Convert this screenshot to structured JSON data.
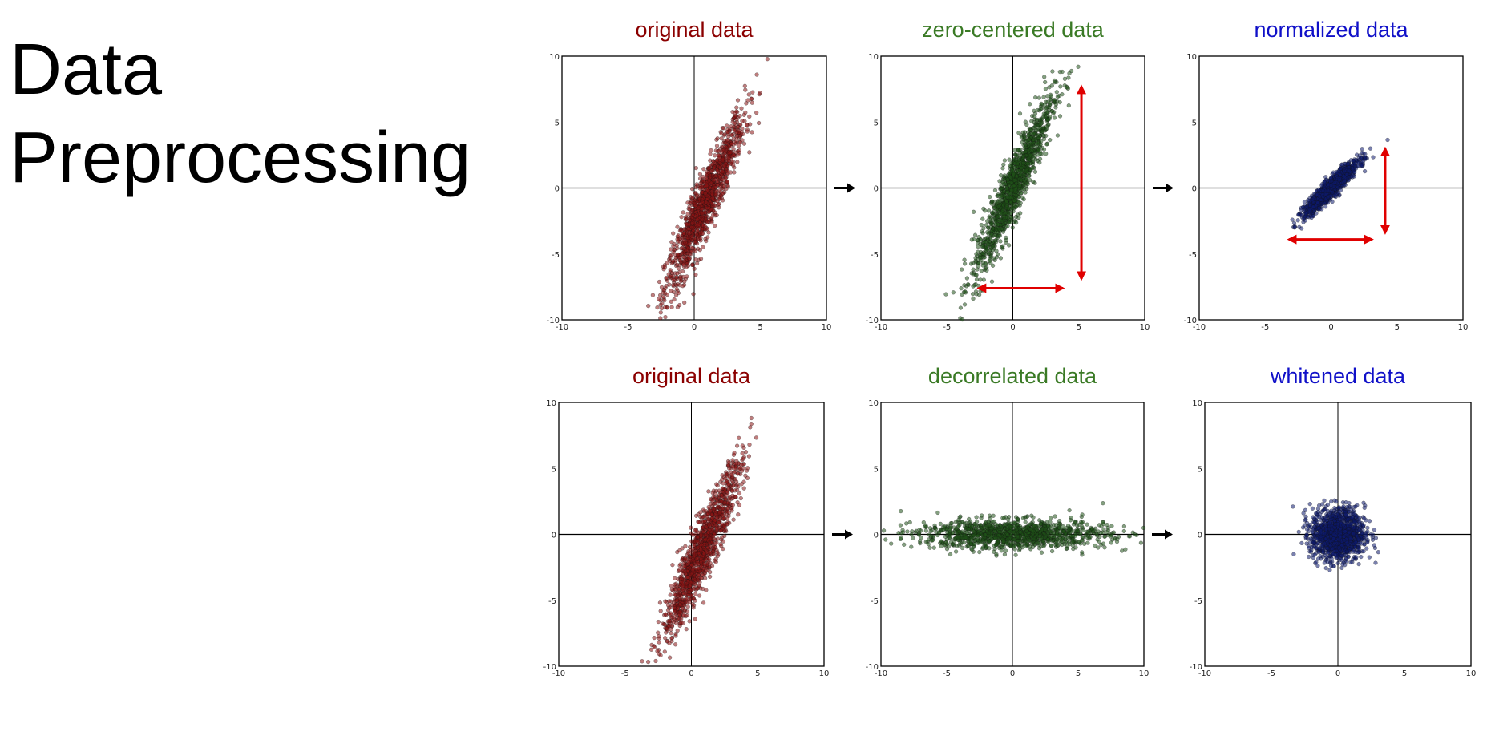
{
  "slide": {
    "title_line1": "Data",
    "title_line2": "Preprocessing"
  },
  "chart_data": [
    {
      "type": "scatter",
      "title": "original data",
      "color": "#8b1414",
      "title_color": "#8b0000",
      "xlim": [
        -10,
        10
      ],
      "ylim": [
        -10,
        10
      ],
      "ticks": [
        -10,
        -5,
        0,
        5,
        10
      ],
      "mean": [
        0.8,
        -1.2
      ],
      "std": [
        1.5,
        3.4
      ],
      "corr": 0.93,
      "n": 1200,
      "arrow_after": true,
      "arrows": []
    },
    {
      "type": "scatter",
      "title": "zero-centered data",
      "color": "#1f5218",
      "title_color": "#3a7a25",
      "xlim": [
        -10,
        10
      ],
      "ylim": [
        -10,
        10
      ],
      "ticks": [
        -10,
        -5,
        0,
        5,
        10
      ],
      "mean": [
        0,
        0
      ],
      "std": [
        1.5,
        3.4
      ],
      "corr": 0.93,
      "n": 1200,
      "arrow_after": true,
      "arrows": [
        {
          "x1": 5.2,
          "y1": -6.9,
          "x2": 5.2,
          "y2": 7.7
        },
        {
          "x1": -2.6,
          "y1": -7.6,
          "x2": 3.8,
          "y2": -7.6
        }
      ]
    },
    {
      "type": "scatter",
      "title": "normalized data",
      "color": "#0d1a6e",
      "title_color": "#1010c8",
      "xlim": [
        -10,
        10
      ],
      "ylim": [
        -10,
        10
      ],
      "ticks": [
        -10,
        -5,
        0,
        5,
        10
      ],
      "mean": [
        0,
        0
      ],
      "std": [
        1.0,
        1.0
      ],
      "corr": 0.93,
      "n": 1200,
      "arrow_after": false,
      "arrows": [
        {
          "x1": 4.1,
          "y1": -3.4,
          "x2": 4.1,
          "y2": 3.0
        },
        {
          "x1": -3.2,
          "y1": -3.9,
          "x2": 3.1,
          "y2": -3.9
        }
      ]
    },
    {
      "type": "scatter",
      "title": "original data",
      "color": "#8b1414",
      "title_color": "#8b0000",
      "xlim": [
        -10,
        10
      ],
      "ylim": [
        -10,
        10
      ],
      "ticks": [
        -10,
        -5,
        0,
        5,
        10
      ],
      "mean": [
        0.8,
        -1.2
      ],
      "std": [
        1.5,
        3.4
      ],
      "corr": 0.93,
      "n": 1200,
      "arrow_after": true,
      "arrows": []
    },
    {
      "type": "scatter",
      "title": "decorrelated data",
      "color": "#1f5218",
      "title_color": "#3a7a25",
      "xlim": [
        -10,
        10
      ],
      "ylim": [
        -10,
        10
      ],
      "ticks": [
        -10,
        -5,
        0,
        5,
        10
      ],
      "mean": [
        0,
        0
      ],
      "std": [
        3.6,
        0.55
      ],
      "corr": 0,
      "n": 1200,
      "arrow_after": true,
      "arrows": []
    },
    {
      "type": "scatter",
      "title": "whitened data",
      "color": "#0d1a6e",
      "title_color": "#1010c8",
      "xlim": [
        -10,
        10
      ],
      "ylim": [
        -10,
        10
      ],
      "ticks": [
        -10,
        -5,
        0,
        5,
        10
      ],
      "mean": [
        0,
        0
      ],
      "std": [
        1.0,
        1.0
      ],
      "corr": 0,
      "n": 1200,
      "arrow_after": false,
      "arrows": []
    }
  ]
}
